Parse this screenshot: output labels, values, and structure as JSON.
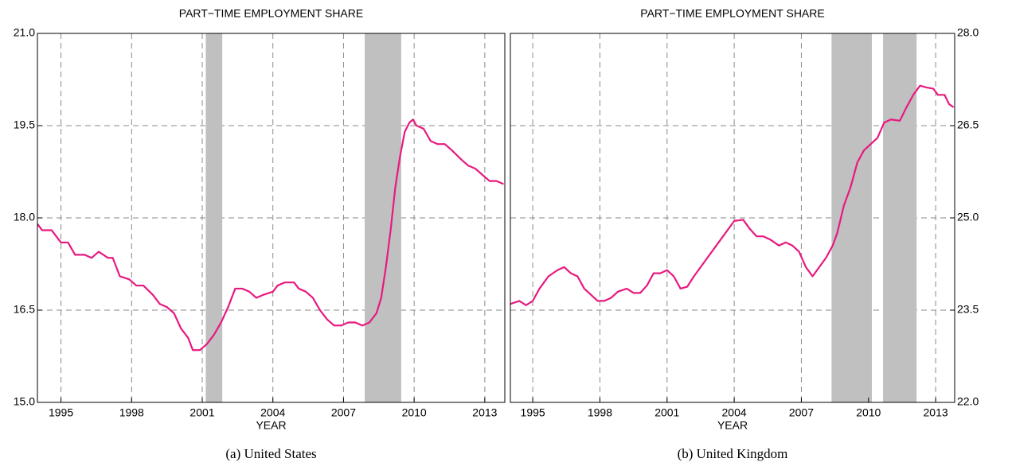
{
  "chart_data": [
    {
      "type": "line",
      "title": "PART−TIME EMPLOYMENT SHARE",
      "x_label": "YEAR",
      "caption": "(a) United States",
      "y_axis_side": "left",
      "grid": true,
      "shade_color": "#c0c0c0",
      "xlim": [
        1994,
        2013.85
      ],
      "xticks": [
        1995,
        1998,
        2001,
        2004,
        2007,
        2010,
        2013
      ],
      "ylim": [
        15,
        21
      ],
      "yticks": [
        {
          "value": 15,
          "label": "15.0"
        },
        {
          "value": 16.5,
          "label": "16.5"
        },
        {
          "value": 18,
          "label": "18.0"
        },
        {
          "value": 19.5,
          "label": "19.5"
        },
        {
          "value": 21,
          "label": "21.0"
        }
      ],
      "shaded_regions": [
        [
          2001.15,
          2001.85
        ],
        [
          2007.9,
          2009.45
        ]
      ],
      "x": [
        1994.0,
        1994.2,
        1994.6,
        1995.0,
        1995.3,
        1995.6,
        1996.0,
        1996.3,
        1996.6,
        1997.0,
        1997.2,
        1997.5,
        1997.9,
        1998.2,
        1998.5,
        1998.9,
        1999.2,
        1999.5,
        1999.8,
        2000.1,
        2000.4,
        2000.6,
        2000.9,
        2001.2,
        2001.5,
        2001.8,
        2002.1,
        2002.4,
        2002.7,
        2003.0,
        2003.3,
        2003.6,
        2004.0,
        2004.2,
        2004.5,
        2004.9,
        2005.1,
        2005.4,
        2005.7,
        2006.0,
        2006.3,
        2006.6,
        2006.9,
        2007.2,
        2007.5,
        2007.8,
        2008.1,
        2008.4,
        2008.6,
        2008.8,
        2009.0,
        2009.2,
        2009.4,
        2009.6,
        2009.8,
        2009.95,
        2010.1,
        2010.4,
        2010.7,
        2011.0,
        2011.3,
        2011.6,
        2012.0,
        2012.3,
        2012.6,
        2012.9,
        2013.2,
        2013.5,
        2013.8
      ],
      "series": [
        {
          "color": "#e8197f",
          "values": [
            17.9,
            17.8,
            17.8,
            17.6,
            17.6,
            17.4,
            17.4,
            17.35,
            17.45,
            17.35,
            17.35,
            17.05,
            17.0,
            16.9,
            16.9,
            16.75,
            16.6,
            16.55,
            16.45,
            16.2,
            16.05,
            15.85,
            15.85,
            15.95,
            16.1,
            16.3,
            16.55,
            16.85,
            16.85,
            16.8,
            16.7,
            16.75,
            16.8,
            16.9,
            16.95,
            16.95,
            16.85,
            16.8,
            16.7,
            16.5,
            16.35,
            16.25,
            16.25,
            16.3,
            16.3,
            16.25,
            16.3,
            16.45,
            16.7,
            17.2,
            17.8,
            18.5,
            19.0,
            19.4,
            19.55,
            19.6,
            19.5,
            19.45,
            19.25,
            19.2,
            19.2,
            19.1,
            18.95,
            18.85,
            18.8,
            18.7,
            18.6,
            18.6,
            18.55
          ]
        }
      ]
    },
    {
      "type": "line",
      "title": "PART−TIME EMPLOYMENT SHARE",
      "x_label": "YEAR",
      "caption": "(b) United Kingdom",
      "y_axis_side": "right",
      "grid": true,
      "shade_color": "#c0c0c0",
      "xlim": [
        1994,
        2013.85
      ],
      "xticks": [
        1995,
        1998,
        2001,
        2004,
        2007,
        2010,
        2013
      ],
      "ylim": [
        22,
        28
      ],
      "yticks": [
        {
          "value": 22,
          "label": "22.0"
        },
        {
          "value": 23.5,
          "label": "23.5"
        },
        {
          "value": 25,
          "label": "25.0"
        },
        {
          "value": 26.5,
          "label": "26.5"
        },
        {
          "value": 28,
          "label": "28.0"
        }
      ],
      "shaded_regions": [
        [
          2008.35,
          2010.15
        ],
        [
          2010.65,
          2012.15
        ]
      ],
      "x": [
        1994.0,
        1994.4,
        1994.7,
        1995.0,
        1995.3,
        1995.7,
        1996.1,
        1996.4,
        1996.7,
        1997.0,
        1997.3,
        1997.6,
        1997.9,
        1998.2,
        1998.5,
        1998.8,
        1999.2,
        1999.5,
        1999.8,
        2000.1,
        2000.4,
        2000.7,
        2001.0,
        2001.3,
        2001.6,
        2001.9,
        2002.2,
        2002.5,
        2002.8,
        2003.1,
        2003.4,
        2003.7,
        2004.0,
        2004.4,
        2004.7,
        2005.0,
        2005.3,
        2005.6,
        2006.0,
        2006.3,
        2006.6,
        2006.9,
        2007.2,
        2007.5,
        2007.8,
        2008.1,
        2008.4,
        2008.6,
        2008.9,
        2009.2,
        2009.5,
        2009.8,
        2010.1,
        2010.4,
        2010.7,
        2011.0,
        2011.4,
        2011.7,
        2012.0,
        2012.3,
        2012.6,
        2012.9,
        2013.1,
        2013.4,
        2013.6,
        2013.8
      ],
      "series": [
        {
          "color": "#e8197f",
          "values": [
            23.6,
            23.65,
            23.58,
            23.65,
            23.85,
            24.05,
            24.15,
            24.2,
            24.1,
            24.05,
            23.85,
            23.75,
            23.65,
            23.65,
            23.7,
            23.8,
            23.85,
            23.78,
            23.78,
            23.9,
            24.1,
            24.1,
            24.15,
            24.05,
            23.85,
            23.88,
            24.05,
            24.2,
            24.35,
            24.5,
            24.65,
            24.8,
            24.95,
            24.97,
            24.82,
            24.7,
            24.7,
            24.65,
            24.55,
            24.6,
            24.55,
            24.45,
            24.2,
            24.05,
            24.2,
            24.35,
            24.55,
            24.75,
            25.2,
            25.5,
            25.9,
            26.1,
            26.2,
            26.3,
            26.55,
            26.6,
            26.58,
            26.8,
            27.0,
            27.15,
            27.12,
            27.1,
            27.0,
            27.0,
            26.85,
            26.8
          ]
        }
      ]
    }
  ]
}
